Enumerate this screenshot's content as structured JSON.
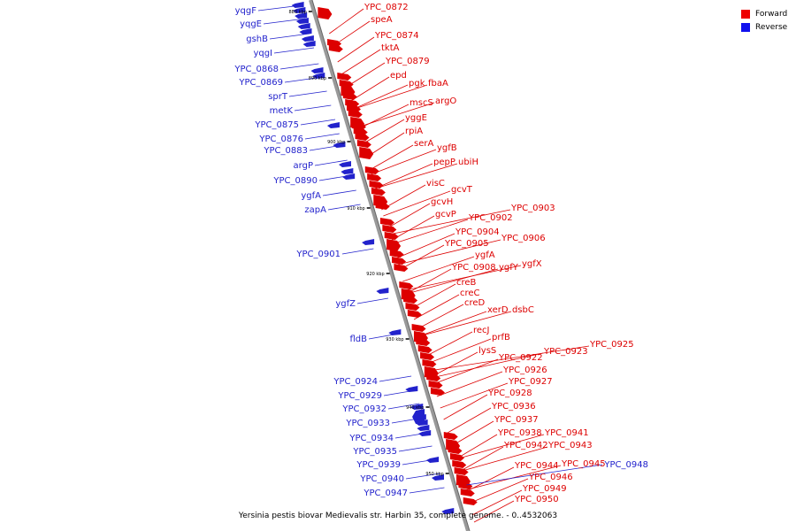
{
  "caption": "Yersinia pestis biovar Medievalis str. Harbin 35, complete genome. - 0..4532063",
  "legend": [
    {
      "label": "Forward",
      "color": "#ee0000"
    },
    {
      "label": "Reverse",
      "color": "#1111ee"
    }
  ],
  "ticks": [
    "880 kbp",
    "890 kbp",
    "900 kbp",
    "910 kbp",
    "920 kbp",
    "930 kbp",
    "940 kbp",
    "950 kbp"
  ],
  "forward_genes": [
    "YPC_0872",
    "speA",
    "YPC_0874",
    "tktA",
    "YPC_0879",
    "epd",
    "pgk",
    "fbaA",
    "mscS",
    "argO",
    "yggE",
    "rpiA",
    "serA",
    "ygfB",
    "pepP",
    "ubiH",
    "visC",
    "gcvT",
    "gcvH",
    "gcvP",
    "YPC_0902",
    "YPC_0903",
    "YPC_0904",
    "YPC_0905",
    "YPC_0906",
    "ygfA",
    "YPC_0908",
    "ygfY",
    "ygfX",
    "creB",
    "creC",
    "creD",
    "xerD",
    "dsbC",
    "recJ",
    "prfB",
    "lysS",
    "YPC_0922",
    "YPC_0923",
    "YPC_0925",
    "YPC_0926",
    "YPC_0927",
    "YPC_0928",
    "YPC_0936",
    "YPC_0937",
    "YPC_0938",
    "YPC_0941",
    "YPC_0942",
    "YPC_0943",
    "YPC_0944",
    "YPC_0945",
    "YPC_0946",
    "YPC_0949",
    "YPC_0950"
  ],
  "reverse_genes": [
    "yqgF",
    "yqgE",
    "gshB",
    "yqgI",
    "YPC_0868",
    "YPC_0869",
    "sprT",
    "metK",
    "YPC_0875",
    "YPC_0876",
    "YPC_0883",
    "argP",
    "YPC_0890",
    "ygfA",
    "zapA",
    "YPC_0901",
    "ygfZ",
    "fldB",
    "YPC_0924",
    "YPC_0929",
    "YPC_0932",
    "YPC_0933",
    "YPC_0934",
    "YPC_0935",
    "YPC_0939",
    "YPC_0940",
    "YPC_0947",
    "YPC_0948"
  ]
}
